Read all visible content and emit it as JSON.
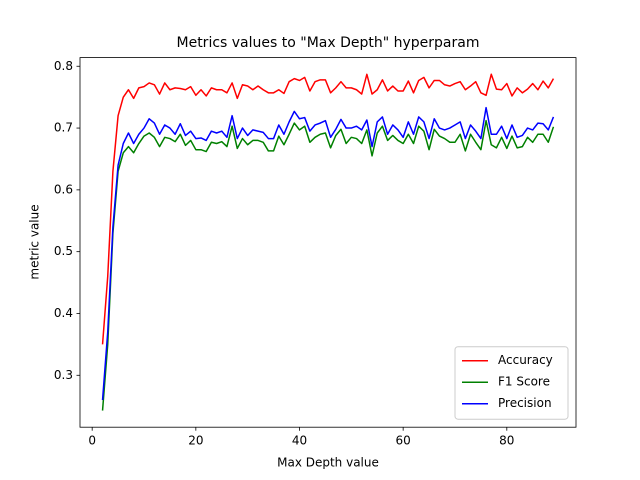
{
  "chart_data": {
    "type": "line",
    "title": "Metrics values to \"Max Depth\" hyperparam",
    "x_label": "Max Depth value",
    "y_label": "metric value",
    "x": [
      2,
      3,
      4,
      5,
      6,
      7,
      8,
      9,
      10,
      11,
      12,
      13,
      14,
      15,
      16,
      17,
      18,
      19,
      20,
      21,
      22,
      23,
      24,
      25,
      26,
      27,
      28,
      29,
      30,
      31,
      32,
      33,
      34,
      35,
      36,
      37,
      38,
      39,
      40,
      41,
      42,
      43,
      44,
      45,
      46,
      47,
      48,
      49,
      50,
      51,
      52,
      53,
      54,
      55,
      56,
      57,
      58,
      59,
      60,
      61,
      62,
      63,
      64,
      65,
      66,
      67,
      68,
      69,
      70,
      71,
      72,
      73,
      74,
      75,
      76,
      77,
      78,
      79,
      80,
      81,
      82,
      83,
      84,
      85,
      86,
      87,
      88,
      89
    ],
    "series": [
      {
        "name": "Accuracy",
        "color": "#ff0000",
        "values": [
          0.35,
          0.46,
          0.63,
          0.72,
          0.75,
          0.762,
          0.748,
          0.765,
          0.767,
          0.773,
          0.77,
          0.755,
          0.773,
          0.762,
          0.765,
          0.764,
          0.762,
          0.767,
          0.753,
          0.762,
          0.752,
          0.765,
          0.762,
          0.762,
          0.757,
          0.773,
          0.748,
          0.77,
          0.768,
          0.762,
          0.768,
          0.762,
          0.757,
          0.757,
          0.762,
          0.756,
          0.775,
          0.78,
          0.777,
          0.782,
          0.76,
          0.775,
          0.778,
          0.778,
          0.757,
          0.765,
          0.775,
          0.765,
          0.765,
          0.762,
          0.755,
          0.787,
          0.755,
          0.762,
          0.778,
          0.76,
          0.768,
          0.76,
          0.76,
          0.776,
          0.757,
          0.777,
          0.782,
          0.765,
          0.777,
          0.777,
          0.77,
          0.768,
          0.772,
          0.775,
          0.762,
          0.768,
          0.775,
          0.757,
          0.753,
          0.787,
          0.763,
          0.762,
          0.772,
          0.752,
          0.765,
          0.757,
          0.763,
          0.772,
          0.762,
          0.776,
          0.765,
          0.78
        ]
      },
      {
        "name": "F1 Score",
        "color": "#008000",
        "values": [
          0.243,
          0.35,
          0.53,
          0.63,
          0.66,
          0.67,
          0.66,
          0.675,
          0.687,
          0.692,
          0.685,
          0.67,
          0.685,
          0.683,
          0.678,
          0.69,
          0.672,
          0.68,
          0.665,
          0.665,
          0.662,
          0.677,
          0.675,
          0.678,
          0.67,
          0.703,
          0.667,
          0.683,
          0.673,
          0.68,
          0.68,
          0.677,
          0.663,
          0.663,
          0.687,
          0.673,
          0.69,
          0.708,
          0.697,
          0.703,
          0.677,
          0.685,
          0.69,
          0.692,
          0.668,
          0.688,
          0.698,
          0.675,
          0.685,
          0.683,
          0.675,
          0.697,
          0.655,
          0.692,
          0.703,
          0.68,
          0.688,
          0.68,
          0.675,
          0.69,
          0.675,
          0.703,
          0.695,
          0.665,
          0.698,
          0.687,
          0.683,
          0.677,
          0.677,
          0.69,
          0.663,
          0.69,
          0.677,
          0.665,
          0.712,
          0.673,
          0.668,
          0.685,
          0.667,
          0.687,
          0.668,
          0.67,
          0.685,
          0.677,
          0.69,
          0.69,
          0.677,
          0.702
        ]
      },
      {
        "name": "Precision",
        "color": "#0000ff",
        "values": [
          0.26,
          0.37,
          0.54,
          0.64,
          0.675,
          0.692,
          0.675,
          0.69,
          0.7,
          0.715,
          0.708,
          0.69,
          0.705,
          0.7,
          0.69,
          0.707,
          0.688,
          0.695,
          0.683,
          0.684,
          0.68,
          0.695,
          0.692,
          0.695,
          0.685,
          0.72,
          0.683,
          0.7,
          0.688,
          0.697,
          0.695,
          0.693,
          0.683,
          0.683,
          0.705,
          0.69,
          0.71,
          0.727,
          0.715,
          0.717,
          0.695,
          0.705,
          0.708,
          0.712,
          0.685,
          0.698,
          0.714,
          0.7,
          0.7,
          0.703,
          0.697,
          0.713,
          0.67,
          0.71,
          0.718,
          0.69,
          0.705,
          0.697,
          0.685,
          0.71,
          0.69,
          0.718,
          0.71,
          0.683,
          0.715,
          0.7,
          0.697,
          0.7,
          0.705,
          0.71,
          0.683,
          0.705,
          0.695,
          0.683,
          0.733,
          0.69,
          0.69,
          0.703,
          0.683,
          0.705,
          0.685,
          0.688,
          0.7,
          0.697,
          0.708,
          0.707,
          0.697,
          0.718
        ]
      }
    ],
    "xlim": [
      -2.35,
      93.35
    ],
    "xticks": [
      0,
      20,
      40,
      60,
      80
    ],
    "ylim": [
      0.216,
      0.814
    ],
    "yticks": [
      0.3,
      0.4,
      0.5,
      0.6,
      0.7,
      0.8
    ],
    "grid": false,
    "legend": "lower right"
  }
}
